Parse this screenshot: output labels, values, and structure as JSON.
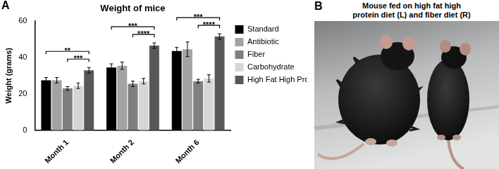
{
  "chart_data": {
    "type": "bar",
    "panel_label": "A",
    "title": "Weight of mice",
    "y_label": "Weight (grams)",
    "categories": [
      "Month 1",
      "Month 2",
      "Month 6"
    ],
    "series": [
      {
        "name": "Standard",
        "color": "#000000",
        "values": [
          27.5,
          34.5,
          43.5
        ],
        "errors": [
          1.5,
          2,
          2
        ]
      },
      {
        "name": "Antibiotic",
        "color": "#a3a3a3",
        "values": [
          27.5,
          35.5,
          44.5
        ],
        "errors": [
          1.5,
          2,
          4
        ]
      },
      {
        "name": "Fiber",
        "color": "#7f7f7f",
        "values": [
          23,
          25.5,
          27
        ],
        "errors": [
          1,
          1.5,
          1
        ]
      },
      {
        "name": "Carbohydrate",
        "color": "#d6d6d6",
        "values": [
          24.5,
          27,
          28.5
        ],
        "errors": [
          1.5,
          1.5,
          2
        ]
      },
      {
        "name": "High Fat High Protein",
        "color": "#585858",
        "values": [
          33,
          46.5,
          51.5
        ],
        "errors": [
          1.5,
          1.5,
          1.5
        ]
      }
    ],
    "ylim": [
      0,
      60
    ],
    "yticks": [
      0,
      20,
      40,
      60
    ],
    "grid": false,
    "legend": "right",
    "annotations": [
      {
        "category": "Month 1",
        "from": "Standard",
        "to": "High Fat High Protein",
        "text": "**"
      },
      {
        "category": "Month 1",
        "from": "Fiber",
        "to": "High Fat High Protein",
        "text": "***"
      },
      {
        "category": "Month 2",
        "from": "Standard",
        "to": "High Fat High Protein",
        "text": "***"
      },
      {
        "category": "Month 2",
        "from": "Fiber",
        "to": "High Fat High Protein",
        "text": "****"
      },
      {
        "category": "Month 6",
        "from": "Standard",
        "to": "High Fat High Protein",
        "text": "***"
      },
      {
        "category": "Month 6",
        "from": "Fiber",
        "to": "High Fat High Protein",
        "text": "****"
      }
    ]
  },
  "image_panel": {
    "label": "B",
    "title": [
      "Mouse fed on high fat high",
      "protein diet (L) and fiber diet (R)"
    ]
  }
}
